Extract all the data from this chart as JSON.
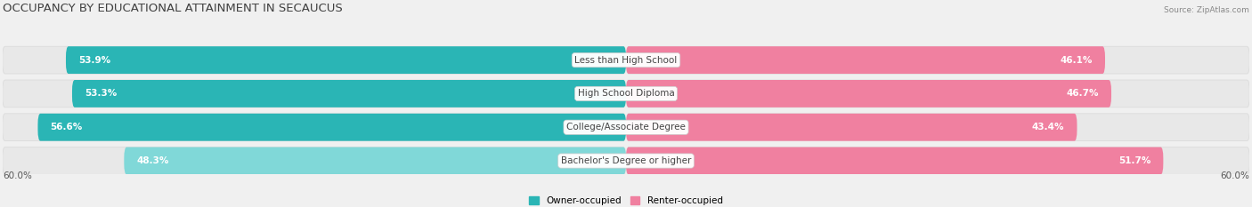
{
  "title": "OCCUPANCY BY EDUCATIONAL ATTAINMENT IN SECAUCUS",
  "source": "Source: ZipAtlas.com",
  "categories": [
    "Less than High School",
    "High School Diploma",
    "College/Associate Degree",
    "Bachelor's Degree or higher"
  ],
  "owner_values": [
    53.9,
    53.3,
    56.6,
    48.3
  ],
  "renter_values": [
    46.1,
    46.7,
    43.4,
    51.7
  ],
  "max_val": 60.0,
  "owner_colors": [
    "#2ab5b5",
    "#2ab5b5",
    "#2ab5b5",
    "#80d8d8"
  ],
  "renter_colors": [
    "#f080a0",
    "#f080a0",
    "#f080a0",
    "#f080a0"
  ],
  "owner_label": "Owner-occupied",
  "renter_label": "Renter-occupied",
  "owner_legend_color": "#2ab5b5",
  "renter_legend_color": "#f080a0",
  "title_fontsize": 9.5,
  "label_fontsize": 7.5,
  "bar_label_fontsize": 7.5,
  "axis_label": "60.0%",
  "bg_color": "#f0f0f0",
  "bar_bg_color": "#e8e8e8",
  "bar_bg_edge_color": "#d8d8d8"
}
